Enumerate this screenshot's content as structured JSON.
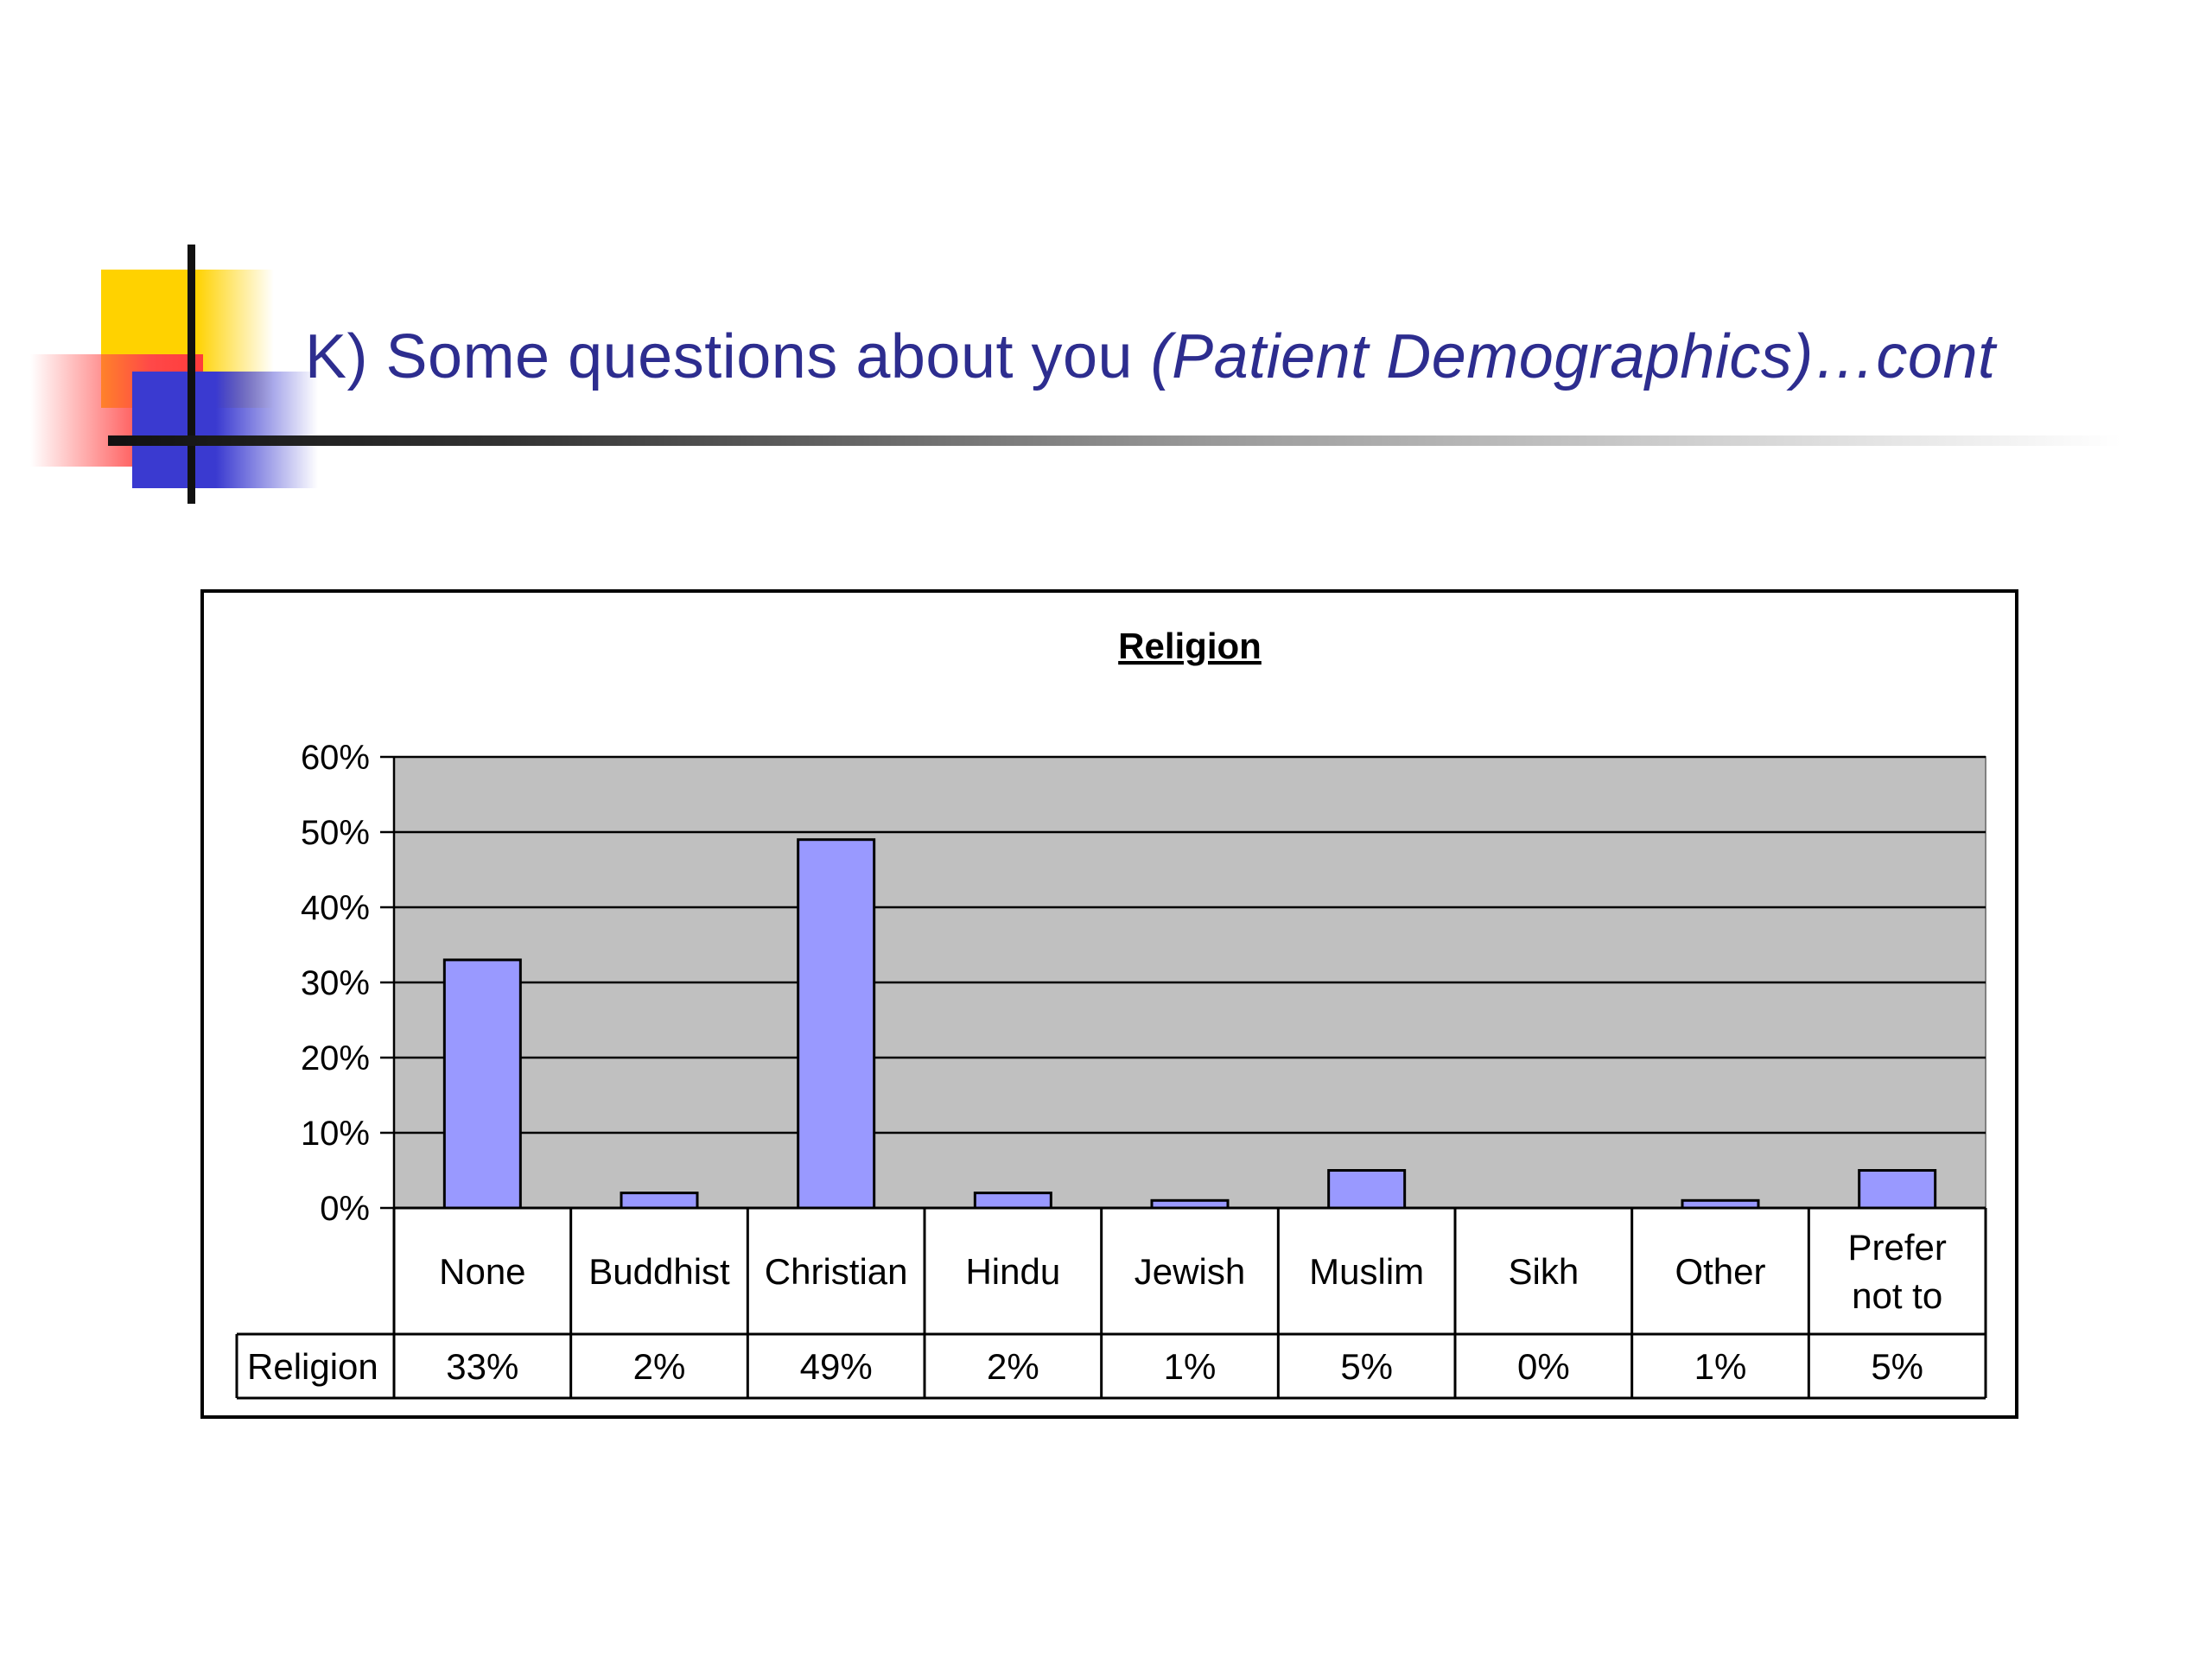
{
  "slide": {
    "title_main": "K) Some questions about you ",
    "title_italic": "(Patient Demographics)…cont"
  },
  "colors": {
    "bar": "#9999ff",
    "plot_bg": "#c0c0c0",
    "title": "#2d2d8f"
  },
  "chart_data": {
    "type": "bar",
    "title": "Religion",
    "categories": [
      "None",
      "Buddhist",
      "Christian",
      "Hindu",
      "Jewish",
      "Muslim",
      "Sikh",
      "Other",
      "Prefer not to"
    ],
    "series": [
      {
        "name": "Religion",
        "values": [
          33,
          2,
          49,
          2,
          1,
          5,
          0,
          1,
          5
        ],
        "labels": [
          "33%",
          "2%",
          "49%",
          "2%",
          "1%",
          "5%",
          "0%",
          "1%",
          "5%"
        ]
      }
    ],
    "yticks": [
      "0%",
      "10%",
      "20%",
      "30%",
      "40%",
      "50%",
      "60%"
    ],
    "ylim": [
      0,
      60
    ],
    "grid": true,
    "legend": "data table"
  }
}
